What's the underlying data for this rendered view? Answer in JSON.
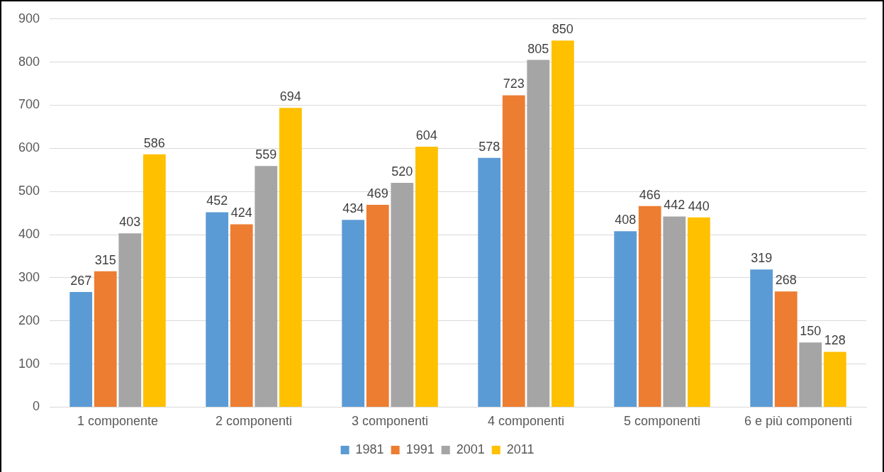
{
  "chart_data": {
    "type": "bar",
    "categories": [
      "1 componente",
      "2 componenti",
      "3 componenti",
      "4 componenti",
      "5 componenti",
      "6 e più componenti"
    ],
    "series": [
      {
        "name": "1981",
        "color": "#5b9bd5",
        "values": [
          267,
          452,
          434,
          578,
          408,
          319
        ]
      },
      {
        "name": "1991",
        "color": "#ed7d31",
        "values": [
          315,
          424,
          469,
          723,
          466,
          268
        ]
      },
      {
        "name": "2001",
        "color": "#a5a5a5",
        "values": [
          403,
          559,
          520,
          805,
          442,
          150
        ]
      },
      {
        "name": "2011",
        "color": "#ffc000",
        "values": [
          586,
          694,
          604,
          850,
          440,
          128
        ]
      }
    ],
    "ylim": [
      0,
      900
    ],
    "yticks": [
      0,
      100,
      200,
      300,
      400,
      500,
      600,
      700,
      800,
      900
    ],
    "grid": "y",
    "legend": "bottom",
    "data_labels": true
  }
}
